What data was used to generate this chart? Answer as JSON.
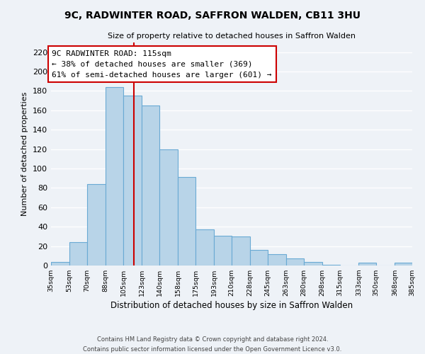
{
  "title": "9C, RADWINTER ROAD, SAFFRON WALDEN, CB11 3HU",
  "subtitle": "Size of property relative to detached houses in Saffron Walden",
  "xlabel": "Distribution of detached houses by size in Saffron Walden",
  "ylabel": "Number of detached properties",
  "bar_edges": [
    35,
    53,
    70,
    88,
    105,
    123,
    140,
    158,
    175,
    193,
    210,
    228,
    245,
    263,
    280,
    298,
    315,
    333,
    350,
    368,
    385
  ],
  "bar_heights": [
    4,
    24,
    84,
    184,
    175,
    165,
    120,
    91,
    37,
    31,
    30,
    16,
    12,
    7,
    4,
    1,
    0,
    3,
    0,
    3
  ],
  "bar_color": "#b8d4e8",
  "bar_edge_color": "#6aaad4",
  "property_line_x": 115,
  "annotation_title": "9C RADWINTER ROAD: 115sqm",
  "annotation_line1": "← 38% of detached houses are smaller (369)",
  "annotation_line2": "61% of semi-detached houses are larger (601) →",
  "annotation_box_facecolor": "#ffffff",
  "annotation_box_edgecolor": "#cc0000",
  "vline_color": "#cc0000",
  "ylim": [
    0,
    230
  ],
  "yticks": [
    0,
    20,
    40,
    60,
    80,
    100,
    120,
    140,
    160,
    180,
    200,
    220
  ],
  "tick_labels": [
    "35sqm",
    "53sqm",
    "70sqm",
    "88sqm",
    "105sqm",
    "123sqm",
    "140sqm",
    "158sqm",
    "175sqm",
    "193sqm",
    "210sqm",
    "228sqm",
    "245sqm",
    "263sqm",
    "280sqm",
    "298sqm",
    "315sqm",
    "333sqm",
    "350sqm",
    "368sqm",
    "385sqm"
  ],
  "footnote1": "Contains HM Land Registry data © Crown copyright and database right 2024.",
  "footnote2": "Contains public sector information licensed under the Open Government Licence v3.0.",
  "background_color": "#eef2f7",
  "grid_color": "#ffffff"
}
